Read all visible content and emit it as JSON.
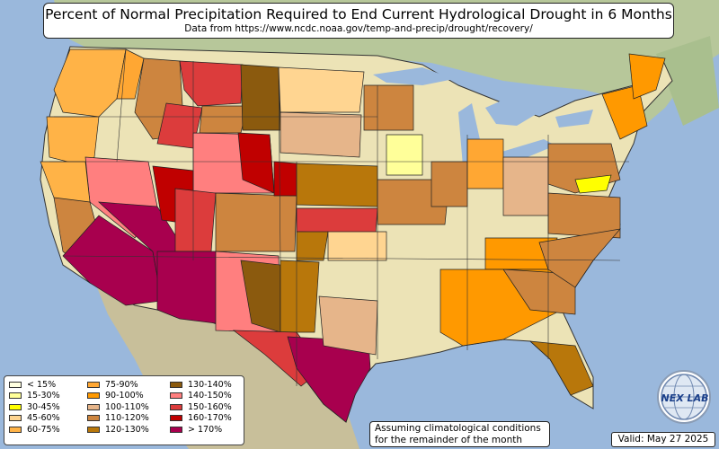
{
  "header": {
    "title": "Percent of Normal Precipitation Required to End Current Hydrological Drought in 6 Months",
    "subtitle": "Data from https://www.ncdc.noaa.gov/temp-and-precip/drought/recovery/"
  },
  "legend": {
    "items": [
      {
        "label": "< 15%",
        "color": "#ffffe0"
      },
      {
        "label": "15-30%",
        "color": "#ffff99"
      },
      {
        "label": "30-45%",
        "color": "#ffff00"
      },
      {
        "label": "45-60%",
        "color": "#ffd591"
      },
      {
        "label": "60-75%",
        "color": "#ffb347"
      },
      {
        "label": "75-90%",
        "color": "#ffa733"
      },
      {
        "label": "90-100%",
        "color": "#ff9900"
      },
      {
        "label": "100-110%",
        "color": "#e6b58a"
      },
      {
        "label": "110-120%",
        "color": "#cd853f"
      },
      {
        "label": "120-130%",
        "color": "#b8770b"
      },
      {
        "label": "130-140%",
        "color": "#8b5a0e"
      },
      {
        "label": "140-150%",
        "color": "#ff7f7f"
      },
      {
        "label": "150-160%",
        "color": "#dc3c3c"
      },
      {
        "label": "160-170%",
        "color": "#c00000"
      },
      {
        "label": "> 170%",
        "color": "#a8004e"
      }
    ]
  },
  "note": {
    "line1": "Assuming climatological conditions",
    "line2": "for the remainder of the month"
  },
  "valid": "Valid: May 27 2025",
  "logo": {
    "text": "NEX LAB",
    "icon": "globe-icon"
  }
}
